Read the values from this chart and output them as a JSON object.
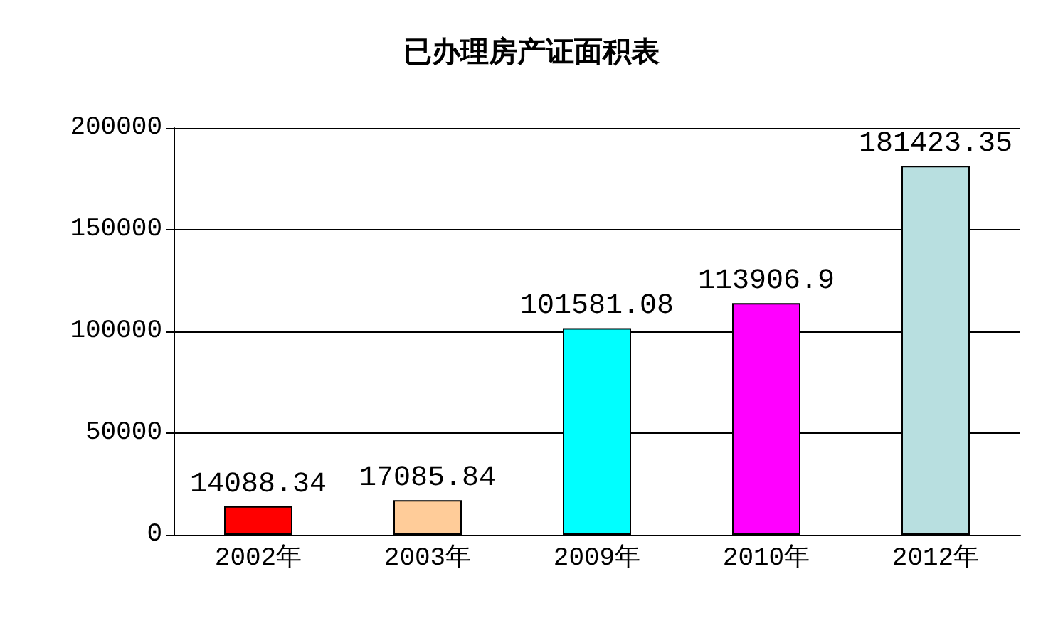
{
  "chart_data": {
    "type": "bar",
    "title": "已办理房产证面积表",
    "categories": [
      "2002年",
      "2003年",
      "2009年",
      "2010年",
      "2012年"
    ],
    "values": [
      14088.34,
      17085.84,
      101581.08,
      113906.9,
      181423.35
    ],
    "colors": [
      "#ff0000",
      "#ffcc99",
      "#00ffff",
      "#ff00ff",
      "#b8dfe0"
    ],
    "ylim": [
      0,
      200000
    ],
    "yticks": [
      0,
      50000,
      100000,
      150000,
      200000
    ],
    "grid": "y",
    "data_labels": true
  }
}
